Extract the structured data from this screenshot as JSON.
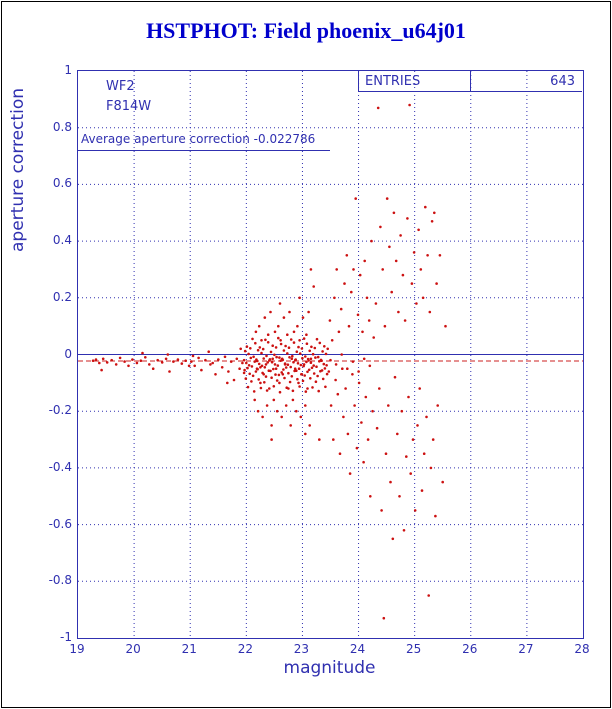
{
  "header": {
    "title": "HSTPHOT: Field phoenix_u64j01"
  },
  "chart_data": {
    "type": "scatter",
    "title": "HSTPHOT: Field phoenix_u64j01",
    "xlabel": "magnitude",
    "ylabel": "aperture correction",
    "xlim": [
      19,
      28
    ],
    "ylim": [
      -1,
      1
    ],
    "grid": true,
    "camera": "WF2",
    "filter": "F814W",
    "entries_label": "ENTRIES",
    "entries_value": "643",
    "avg_label": "Average aperture correction -0.022786",
    "average": -0.022786,
    "colors": {
      "axis": "#3030b0",
      "title": "#0000cc",
      "point": "#cc1111",
      "avg_line": "#cc2222"
    },
    "x_ticks": [
      {
        "v": 19,
        "label": "19"
      },
      {
        "v": 20,
        "label": "20"
      },
      {
        "v": 21,
        "label": "21"
      },
      {
        "v": 22,
        "label": "22"
      },
      {
        "v": 23,
        "label": "23"
      },
      {
        "v": 24,
        "label": "24"
      },
      {
        "v": 25,
        "label": "25"
      },
      {
        "v": 26,
        "label": "26"
      },
      {
        "v": 27,
        "label": "27"
      },
      {
        "v": 28,
        "label": "28"
      }
    ],
    "y_ticks": [
      {
        "v": 1,
        "label": "1"
      },
      {
        "v": 0.8,
        "label": "0.8"
      },
      {
        "v": 0.6,
        "label": "0.6"
      },
      {
        "v": 0.4,
        "label": "0.4"
      },
      {
        "v": 0.2,
        "label": "0.2"
      },
      {
        "v": 0,
        "label": "0"
      },
      {
        "v": -0.2,
        "label": "-0.2"
      },
      {
        "v": -0.4,
        "label": "-0.4"
      },
      {
        "v": -0.6,
        "label": "-0.6"
      },
      {
        "v": -0.8,
        "label": "-0.8"
      },
      {
        "v": -1,
        "label": "-1"
      }
    ],
    "points": [
      [
        19.27,
        -0.022
      ],
      [
        19.32,
        -0.018
      ],
      [
        19.38,
        -0.03
      ],
      [
        19.42,
        -0.055
      ],
      [
        19.45,
        -0.015
      ],
      [
        19.52,
        -0.028
      ],
      [
        19.6,
        -0.02
      ],
      [
        19.68,
        -0.035
      ],
      [
        19.75,
        -0.012
      ],
      [
        19.83,
        -0.025
      ],
      [
        19.9,
        -0.04
      ],
      [
        19.97,
        -0.018
      ],
      [
        20.05,
        -0.03
      ],
      [
        20.12,
        -0.022
      ],
      [
        20.15,
        0.005
      ],
      [
        20.2,
        -0.01
      ],
      [
        20.27,
        -0.035
      ],
      [
        20.34,
        -0.05
      ],
      [
        20.42,
        -0.02
      ],
      [
        20.5,
        -0.028
      ],
      [
        20.57,
        -0.015
      ],
      [
        20.6,
        0.0
      ],
      [
        20.63,
        -0.06
      ],
      [
        20.7,
        -0.025
      ],
      [
        20.78,
        -0.018
      ],
      [
        20.85,
        -0.032
      ],
      [
        20.92,
        -0.022
      ],
      [
        20.98,
        -0.04
      ],
      [
        21.02,
        -0.025
      ],
      [
        21.05,
        -0.005
      ],
      [
        21.08,
        -0.04
      ],
      [
        21.15,
        -0.012
      ],
      [
        21.2,
        -0.055
      ],
      [
        21.27,
        -0.02
      ],
      [
        21.33,
        0.01
      ],
      [
        21.36,
        -0.035
      ],
      [
        21.4,
        -0.03
      ],
      [
        21.45,
        -0.07
      ],
      [
        21.5,
        -0.018
      ],
      [
        21.57,
        -0.045
      ],
      [
        21.62,
        -0.008
      ],
      [
        21.66,
        -0.1
      ],
      [
        21.68,
        -0.06
      ],
      [
        21.73,
        -0.025
      ],
      [
        21.78,
        -0.09
      ],
      [
        21.83,
        -0.015
      ],
      [
        21.88,
        -0.05
      ],
      [
        21.9,
        0.02
      ],
      [
        21.93,
        -0.03
      ],
      [
        21.96,
        -0.065
      ],
      [
        21.96,
        -0.02
      ],
      [
        21.97,
        -0.055
      ],
      [
        21.98,
        0.012
      ],
      [
        21.99,
        -0.085
      ],
      [
        22.0,
        -0.03
      ],
      [
        22.01,
        0.028
      ],
      [
        22.02,
        -0.048
      ],
      [
        22.03,
        -0.115
      ],
      [
        22.04,
        0.002
      ],
      [
        22.05,
        -0.038
      ],
      [
        22.06,
        -0.068
      ],
      [
        22.07,
        0.022
      ],
      [
        22.08,
        -0.012
      ],
      [
        22.09,
        -0.095
      ],
      [
        22.1,
        -0.042
      ],
      [
        22.11,
        0.055
      ],
      [
        22.12,
        -0.075
      ],
      [
        22.13,
        -0.008
      ],
      [
        22.14,
        -0.13
      ],
      [
        22.15,
        -0.025
      ],
      [
        22.16,
        0.04
      ],
      [
        22.17,
        -0.06
      ],
      [
        22.18,
        -0.018
      ],
      [
        22.19,
        -0.023
      ],
      [
        22.2,
        -0.052
      ],
      [
        22.21,
        0.015
      ],
      [
        22.22,
        -0.088
      ],
      [
        22.23,
        -0.033
      ],
      [
        22.24,
        0.025
      ],
      [
        22.25,
        -0.045
      ],
      [
        22.26,
        -0.118
      ],
      [
        22.27,
        0.005
      ],
      [
        22.28,
        -0.04
      ],
      [
        22.29,
        -0.065
      ],
      [
        22.3,
        0.019
      ],
      [
        22.31,
        -0.014
      ],
      [
        22.32,
        -0.098
      ],
      [
        22.33,
        -0.045
      ],
      [
        22.34,
        0.052
      ],
      [
        22.35,
        -0.078
      ],
      [
        22.36,
        -0.005
      ],
      [
        22.37,
        -0.127
      ],
      [
        22.38,
        -0.028
      ],
      [
        22.39,
        0.043
      ],
      [
        22.4,
        -0.057
      ],
      [
        22.41,
        -0.021
      ],
      [
        22.42,
        -0.017
      ],
      [
        22.43,
        -0.058
      ],
      [
        22.44,
        0.009
      ],
      [
        22.45,
        -0.082
      ],
      [
        22.46,
        -0.027
      ],
      [
        22.47,
        0.031
      ],
      [
        22.48,
        -0.051
      ],
      [
        22.49,
        -0.112
      ],
      [
        22.5,
        -0.001
      ],
      [
        22.51,
        -0.035
      ],
      [
        22.52,
        -0.071
      ],
      [
        22.53,
        0.025
      ],
      [
        22.54,
        -0.009
      ],
      [
        22.55,
        -0.092
      ],
      [
        22.56,
        -0.039
      ],
      [
        22.57,
        0.058
      ],
      [
        22.58,
        -0.072
      ],
      [
        22.59,
        -0.011
      ],
      [
        22.6,
        -0.133
      ],
      [
        22.61,
        -0.022
      ],
      [
        22.62,
        0.037
      ],
      [
        22.63,
        -0.063
      ],
      [
        22.64,
        -0.015
      ],
      [
        22.65,
        -0.019
      ],
      [
        22.66,
        -0.053
      ],
      [
        22.67,
        0.014
      ],
      [
        22.68,
        -0.083
      ],
      [
        22.69,
        -0.032
      ],
      [
        22.7,
        0.03
      ],
      [
        22.71,
        -0.046
      ],
      [
        22.72,
        -0.117
      ],
      [
        22.73,
        0.004
      ],
      [
        22.74,
        -0.036
      ],
      [
        22.75,
        -0.066
      ],
      [
        22.76,
        0.024
      ],
      [
        22.77,
        -0.01
      ],
      [
        22.78,
        -0.097
      ],
      [
        22.79,
        -0.044
      ],
      [
        22.8,
        0.053
      ],
      [
        22.81,
        -0.077
      ],
      [
        22.82,
        -0.006
      ],
      [
        22.83,
        -0.128
      ],
      [
        22.84,
        -0.027
      ],
      [
        22.85,
        0.042
      ],
      [
        22.86,
        -0.058
      ],
      [
        22.87,
        -0.02
      ],
      [
        22.88,
        -0.018
      ],
      [
        22.89,
        -0.057
      ],
      [
        22.9,
        0.01
      ],
      [
        22.91,
        -0.087
      ],
      [
        22.92,
        -0.031
      ],
      [
        22.93,
        0.026
      ],
      [
        22.94,
        -0.05
      ],
      [
        22.95,
        -0.113
      ],
      [
        22.96,
        0.003
      ],
      [
        22.97,
        -0.037
      ],
      [
        22.98,
        -0.07
      ],
      [
        22.99,
        0.021
      ],
      [
        23.0,
        -0.013
      ],
      [
        23.01,
        -0.093
      ],
      [
        23.02,
        -0.041
      ],
      [
        23.03,
        0.056
      ],
      [
        23.04,
        -0.074
      ],
      [
        23.05,
        -0.007
      ],
      [
        23.06,
        -0.131
      ],
      [
        23.07,
        -0.026
      ],
      [
        23.08,
        0.038
      ],
      [
        23.09,
        -0.061
      ],
      [
        23.1,
        -0.016
      ],
      [
        23.11,
        -0.021
      ],
      [
        23.12,
        -0.054
      ],
      [
        23.13,
        0.013
      ],
      [
        23.14,
        -0.084
      ],
      [
        23.15,
        -0.029
      ],
      [
        23.16,
        0.027
      ],
      [
        23.17,
        -0.047
      ],
      [
        23.18,
        -0.116
      ],
      [
        23.19,
        0.001
      ],
      [
        23.2,
        -0.039
      ],
      [
        23.21,
        -0.067
      ],
      [
        23.22,
        0.023
      ],
      [
        23.23,
        -0.011
      ],
      [
        23.24,
        -0.096
      ],
      [
        23.25,
        -0.043
      ],
      [
        23.26,
        0.054
      ],
      [
        23.27,
        -0.076
      ],
      [
        23.28,
        -0.009
      ],
      [
        23.29,
        -0.129
      ],
      [
        23.3,
        -0.024
      ],
      [
        23.31,
        0.041
      ],
      [
        23.32,
        -0.059
      ],
      [
        23.33,
        -0.019
      ],
      [
        23.34,
        -0.022
      ],
      [
        23.35,
        -0.056
      ],
      [
        23.36,
        0.011
      ],
      [
        23.37,
        -0.086
      ],
      [
        23.38,
        -0.034
      ],
      [
        23.39,
        0.029
      ],
      [
        23.4,
        -0.049
      ],
      [
        23.41,
        -0.114
      ],
      [
        23.42,
        0.002
      ],
      [
        23.43,
        -0.038
      ],
      [
        23.44,
        -0.069
      ],
      [
        23.45,
        0.02
      ],
      [
        22.15,
        -0.16
      ],
      [
        22.17,
        0.08
      ],
      [
        22.19,
        -0.05
      ],
      [
        22.21,
        -0.2
      ],
      [
        22.23,
        0.1
      ],
      [
        22.25,
        -0.1
      ],
      [
        22.27,
        0.05
      ],
      [
        22.29,
        -0.22
      ],
      [
        22.31,
        -0.07
      ],
      [
        22.33,
        0.13
      ],
      [
        22.35,
        -0.035
      ],
      [
        22.37,
        -0.18
      ],
      [
        22.39,
        0.07
      ],
      [
        22.41,
        -0.12
      ],
      [
        22.43,
        0.15
      ],
      [
        22.45,
        -0.25
      ],
      [
        22.47,
        -0.015
      ],
      [
        22.49,
        -0.16
      ],
      [
        22.51,
        0.08
      ],
      [
        22.53,
        -0.05
      ],
      [
        22.55,
        -0.2
      ],
      [
        22.57,
        0.1
      ],
      [
        22.59,
        -0.1
      ],
      [
        22.61,
        0.05
      ],
      [
        22.63,
        -0.22
      ],
      [
        22.65,
        -0.07
      ],
      [
        22.67,
        0.13
      ],
      [
        22.69,
        -0.035
      ],
      [
        22.71,
        -0.18
      ],
      [
        22.73,
        0.07
      ],
      [
        22.75,
        -0.12
      ],
      [
        22.77,
        0.15
      ],
      [
        22.79,
        -0.25
      ],
      [
        22.81,
        -0.015
      ],
      [
        22.83,
        -0.16
      ],
      [
        22.85,
        0.08
      ],
      [
        22.87,
        -0.05
      ],
      [
        22.89,
        -0.2
      ],
      [
        22.91,
        0.1
      ],
      [
        22.93,
        -0.1
      ],
      [
        22.95,
        0.05
      ],
      [
        22.97,
        -0.22
      ],
      [
        22.99,
        -0.07
      ],
      [
        23.01,
        0.13
      ],
      [
        23.03,
        -0.035
      ],
      [
        23.05,
        -0.18
      ],
      [
        23.07,
        0.07
      ],
      [
        23.09,
        -0.12
      ],
      [
        23.11,
        0.15
      ],
      [
        23.13,
        -0.25
      ],
      [
        23.15,
        -0.015
      ],
      [
        23.47,
        -0.06
      ],
      [
        23.49,
        0.12
      ],
      [
        23.51,
        -0.18
      ],
      [
        23.53,
        0.05
      ],
      [
        23.55,
        -0.3
      ],
      [
        23.57,
        0.2
      ],
      [
        23.59,
        -0.09
      ],
      [
        23.61,
        0.3
      ],
      [
        23.63,
        -0.14
      ],
      [
        23.65,
        0.08
      ],
      [
        23.67,
        -0.35
      ],
      [
        23.69,
        0.16
      ],
      [
        23.71,
        -0.05
      ],
      [
        23.73,
        -0.22
      ],
      [
        23.75,
        0.25
      ],
      [
        23.77,
        -0.12
      ],
      [
        23.79,
        0.35
      ],
      [
        23.81,
        -0.28
      ],
      [
        23.83,
        0.1
      ],
      [
        23.85,
        -0.42
      ],
      [
        23.87,
        0.22
      ],
      [
        23.89,
        -0.07
      ],
      [
        23.91,
        0.3
      ],
      [
        23.93,
        -0.18
      ],
      [
        23.95,
        0.55
      ],
      [
        23.97,
        -0.33
      ],
      [
        23.99,
        0.14
      ],
      [
        24.01,
        -0.1
      ],
      [
        24.03,
        0.28
      ],
      [
        24.05,
        -0.24
      ],
      [
        24.07,
        0.08
      ],
      [
        24.09,
        -0.38
      ],
      [
        24.11,
        0.33
      ],
      [
        24.13,
        -0.15
      ],
      [
        24.15,
        0.2
      ],
      [
        24.17,
        -0.3
      ],
      [
        24.19,
        0.12
      ],
      [
        24.21,
        -0.5
      ],
      [
        24.23,
        0.4
      ],
      [
        24.25,
        -0.2
      ],
      [
        24.27,
        0.06
      ],
      [
        23.5,
        -0.02
      ],
      [
        23.6,
        -0.035
      ],
      [
        23.7,
        0.0
      ],
      [
        23.8,
        -0.05
      ],
      [
        23.9,
        -0.025
      ],
      [
        24.0,
        -0.06
      ],
      [
        24.1,
        -0.015
      ],
      [
        24.2,
        -0.04
      ],
      [
        24.31,
        0.18
      ],
      [
        24.33,
        -0.26
      ],
      [
        24.35,
        0.87
      ],
      [
        24.37,
        -0.12
      ],
      [
        24.39,
        0.45
      ],
      [
        24.41,
        -0.55
      ],
      [
        24.43,
        0.3
      ],
      [
        24.45,
        -0.93
      ],
      [
        24.47,
        0.1
      ],
      [
        24.49,
        -0.35
      ],
      [
        24.51,
        0.55
      ],
      [
        24.53,
        -0.18
      ],
      [
        24.55,
        0.38
      ],
      [
        24.57,
        -0.45
      ],
      [
        24.59,
        0.22
      ],
      [
        24.61,
        -0.65
      ],
      [
        24.63,
        0.5
      ],
      [
        24.65,
        -0.08
      ],
      [
        24.67,
        0.33
      ],
      [
        24.69,
        -0.28
      ],
      [
        24.71,
        0.15
      ],
      [
        24.73,
        -0.5
      ],
      [
        24.75,
        0.42
      ],
      [
        24.77,
        -0.2
      ],
      [
        24.79,
        0.28
      ],
      [
        24.81,
        -0.62
      ],
      [
        24.83,
        0.12
      ],
      [
        24.85,
        -0.36
      ],
      [
        24.87,
        0.48
      ],
      [
        24.89,
        -0.15
      ],
      [
        24.91,
        0.88
      ],
      [
        24.93,
        -0.42
      ],
      [
        24.95,
        0.25
      ],
      [
        24.97,
        -0.3
      ],
      [
        24.99,
        0.36
      ],
      [
        25.01,
        -0.55
      ],
      [
        25.03,
        0.18
      ],
      [
        25.05,
        -0.25
      ],
      [
        25.07,
        0.44
      ],
      [
        25.09,
        -0.12
      ],
      [
        25.11,
        0.3
      ],
      [
        25.13,
        -0.48
      ],
      [
        25.15,
        0.2
      ],
      [
        25.17,
        -0.35
      ],
      [
        25.19,
        0.52
      ],
      [
        25.21,
        -0.22
      ],
      [
        25.23,
        0.35
      ],
      [
        25.25,
        -0.85
      ],
      [
        25.27,
        0.15
      ],
      [
        25.29,
        -0.4
      ],
      [
        25.31,
        0.47
      ],
      [
        25.33,
        -0.3
      ],
      [
        25.35,
        0.5
      ],
      [
        25.37,
        -0.57
      ],
      [
        25.39,
        0.25
      ],
      [
        25.41,
        -0.18
      ],
      [
        25.45,
        0.35
      ],
      [
        25.5,
        -0.45
      ],
      [
        25.55,
        0.1
      ],
      [
        22.95,
        0.2
      ],
      [
        23.2,
        0.24
      ],
      [
        23.3,
        -0.3
      ],
      [
        23.15,
        0.3
      ],
      [
        23.05,
        -0.28
      ],
      [
        22.6,
        0.18
      ],
      [
        22.45,
        -0.3
      ]
    ]
  }
}
